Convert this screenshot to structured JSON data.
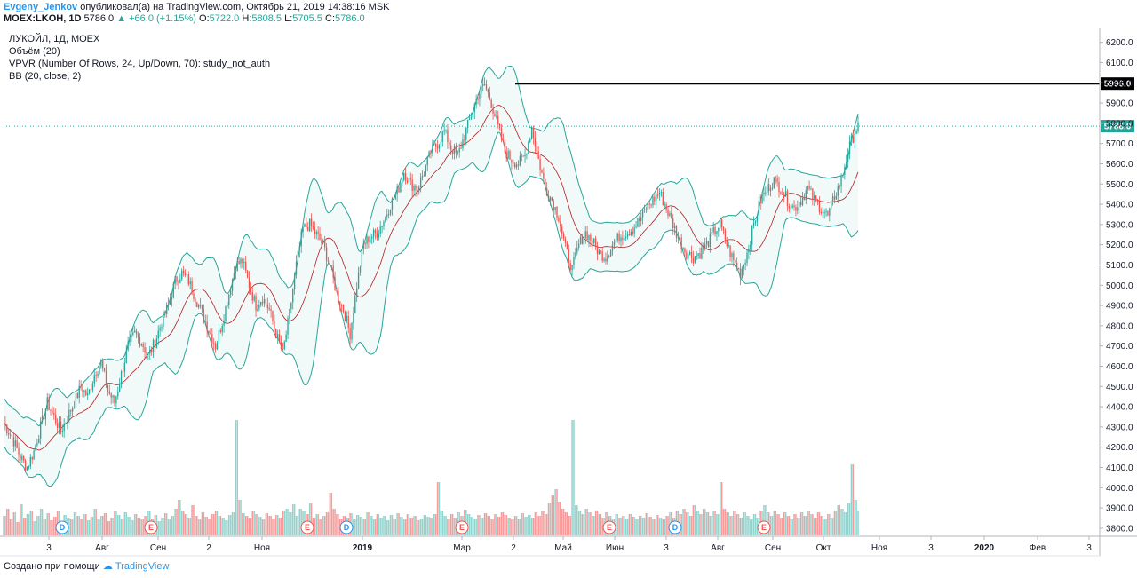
{
  "header": {
    "author": "Evgeny_Jenkov",
    "published": "опубликовал(а) на TradingView.com, Октябрь 21, 2019 14:38:16 MSK",
    "symbol": "MOEX:LKOH, 1D",
    "last": "5786.0",
    "change": "▲ +66.0 (+1.15%)",
    "open_label": "O:",
    "open": "5722.0",
    "high_label": "H:",
    "high": "5808.5",
    "low_label": "L:",
    "low": "5705.5",
    "close_label": "C:",
    "close": "5786.0"
  },
  "legend": {
    "title": "ЛУКОЙЛ, 1Д, MOEX",
    "volume": "Объём (20)",
    "vpvr": "VPVR (Number Of Rows, 24, Up/Down, 70): study_not_auth",
    "bb": "BB (20, close, 2)"
  },
  "footer": {
    "created": "Создано при помощи",
    "brand": "TradingView"
  },
  "chart_data": {
    "type": "candlestick",
    "y_ticks": [
      "6200.0",
      "6100.0",
      "6000.0",
      "5900.0",
      "5800.0",
      "5700.0",
      "5600.0",
      "5500.0",
      "5400.0",
      "5300.0",
      "5200.0",
      "5100.0",
      "5000.0",
      "4900.0",
      "4800.0",
      "4700.0",
      "4600.0",
      "4500.0",
      "4400.0",
      "4300.0",
      "4200.0",
      "4100.0",
      "4000.0",
      "3900.0",
      "3800.0"
    ],
    "x_labels": [
      "3",
      "Авг",
      "Сен",
      "2",
      "Ноя",
      "2019",
      "Мар",
      "2",
      "Май",
      "Июн",
      "3",
      "Авг",
      "Сен",
      "Окт",
      "Ноя",
      "3",
      "2020",
      "Фев",
      "3"
    ],
    "x_bold": [
      "2019",
      "2020"
    ],
    "ylim": [
      3760,
      6260
    ],
    "resistance_level": 5996.0,
    "resistance_label": "5996.0",
    "last_price": 5786.0,
    "last_price_label": "5786.0",
    "close_path": [
      [
        0,
        4320
      ],
      [
        5,
        4250
      ],
      [
        10,
        4150
      ],
      [
        14,
        4100
      ],
      [
        18,
        4180
      ],
      [
        22,
        4300
      ],
      [
        26,
        4420
      ],
      [
        30,
        4350
      ],
      [
        34,
        4280
      ],
      [
        38,
        4350
      ],
      [
        42,
        4420
      ],
      [
        46,
        4500
      ],
      [
        50,
        4450
      ],
      [
        54,
        4560
      ],
      [
        58,
        4620
      ],
      [
        62,
        4480
      ],
      [
        66,
        4420
      ],
      [
        70,
        4560
      ],
      [
        74,
        4700
      ],
      [
        78,
        4760
      ],
      [
        82,
        4720
      ],
      [
        86,
        4650
      ],
      [
        90,
        4720
      ],
      [
        94,
        4820
      ],
      [
        98,
        4900
      ],
      [
        102,
        5020
      ],
      [
        106,
        5060
      ],
      [
        110,
        5020
      ],
      [
        114,
        4940
      ],
      [
        118,
        4860
      ],
      [
        122,
        4780
      ],
      [
        126,
        4700
      ],
      [
        130,
        4820
      ],
      [
        134,
        4960
      ],
      [
        138,
        5100
      ],
      [
        142,
        5120
      ],
      [
        146,
        5000
      ],
      [
        150,
        4900
      ],
      [
        154,
        4940
      ],
      [
        158,
        4880
      ],
      [
        162,
        4760
      ],
      [
        166,
        4660
      ],
      [
        170,
        4860
      ],
      [
        174,
        5100
      ],
      [
        178,
        5280
      ],
      [
        182,
        5300
      ],
      [
        186,
        5250
      ],
      [
        190,
        5200
      ],
      [
        194,
        5100
      ],
      [
        198,
        4960
      ],
      [
        202,
        4880
      ],
      [
        206,
        4760
      ],
      [
        210,
        5000
      ],
      [
        214,
        5200
      ],
      [
        218,
        5240
      ],
      [
        222,
        5260
      ],
      [
        226,
        5320
      ],
      [
        230,
        5400
      ],
      [
        234,
        5460
      ],
      [
        238,
        5560
      ],
      [
        242,
        5500
      ],
      [
        246,
        5480
      ],
      [
        250,
        5560
      ],
      [
        254,
        5660
      ],
      [
        258,
        5700
      ],
      [
        262,
        5760
      ],
      [
        266,
        5680
      ],
      [
        270,
        5640
      ],
      [
        274,
        5740
      ],
      [
        278,
        5840
      ],
      [
        282,
        5940
      ],
      [
        286,
        5990
      ],
      [
        290,
        5900
      ],
      [
        294,
        5780
      ],
      [
        298,
        5660
      ],
      [
        302,
        5620
      ],
      [
        306,
        5600
      ],
      [
        310,
        5640
      ],
      [
        314,
        5780
      ],
      [
        318,
        5620
      ],
      [
        322,
        5480
      ],
      [
        326,
        5420
      ],
      [
        330,
        5340
      ],
      [
        334,
        5180
      ],
      [
        338,
        5080
      ],
      [
        342,
        5200
      ],
      [
        346,
        5260
      ],
      [
        350,
        5220
      ],
      [
        354,
        5160
      ],
      [
        358,
        5140
      ],
      [
        362,
        5200
      ],
      [
        366,
        5240
      ],
      [
        370,
        5260
      ],
      [
        374,
        5280
      ],
      [
        378,
        5320
      ],
      [
        382,
        5380
      ],
      [
        386,
        5420
      ],
      [
        390,
        5460
      ],
      [
        394,
        5380
      ],
      [
        398,
        5300
      ],
      [
        402,
        5220
      ],
      [
        406,
        5160
      ],
      [
        410,
        5140
      ],
      [
        414,
        5160
      ],
      [
        418,
        5200
      ],
      [
        422,
        5260
      ],
      [
        426,
        5300
      ],
      [
        430,
        5200
      ],
      [
        434,
        5120
      ],
      [
        438,
        5060
      ],
      [
        442,
        5160
      ],
      [
        446,
        5300
      ],
      [
        450,
        5420
      ],
      [
        454,
        5480
      ],
      [
        458,
        5520
      ],
      [
        462,
        5480
      ],
      [
        466,
        5420
      ],
      [
        470,
        5380
      ],
      [
        474,
        5420
      ],
      [
        478,
        5480
      ],
      [
        482,
        5420
      ],
      [
        486,
        5380
      ],
      [
        490,
        5340
      ],
      [
        494,
        5440
      ],
      [
        498,
        5520
      ],
      [
        502,
        5660
      ],
      [
        506,
        5760
      ],
      [
        508,
        5786
      ]
    ],
    "volume_profile": [
      [
        0,
        22
      ],
      [
        2,
        30
      ],
      [
        4,
        18
      ],
      [
        6,
        26
      ],
      [
        8,
        15
      ],
      [
        10,
        35
      ],
      [
        12,
        20
      ],
      [
        14,
        24
      ],
      [
        16,
        28
      ],
      [
        18,
        16
      ],
      [
        20,
        22
      ],
      [
        22,
        30
      ],
      [
        24,
        19
      ],
      [
        26,
        25
      ],
      [
        28,
        17
      ],
      [
        30,
        21
      ],
      [
        32,
        27
      ],
      [
        34,
        15
      ],
      [
        36,
        23
      ],
      [
        38,
        20
      ],
      [
        40,
        18
      ],
      [
        42,
        26
      ],
      [
        44,
        22
      ],
      [
        46,
        19
      ],
      [
        48,
        24
      ],
      [
        50,
        17
      ],
      [
        52,
        21
      ],
      [
        54,
        30
      ],
      [
        56,
        18
      ],
      [
        58,
        22
      ],
      [
        60,
        25
      ],
      [
        62,
        16
      ],
      [
        64,
        20
      ],
      [
        66,
        28
      ],
      [
        68,
        23
      ],
      [
        70,
        19
      ],
      [
        72,
        26
      ],
      [
        74,
        21
      ],
      [
        76,
        17
      ],
      [
        78,
        24
      ],
      [
        80,
        20
      ],
      [
        82,
        18
      ],
      [
        84,
        22
      ],
      [
        86,
        27
      ],
      [
        88,
        19
      ],
      [
        90,
        23
      ],
      [
        92,
        16
      ],
      [
        94,
        20
      ],
      [
        96,
        25
      ],
      [
        98,
        18
      ],
      [
        100,
        22
      ],
      [
        102,
        30
      ],
      [
        104,
        40
      ],
      [
        106,
        28
      ],
      [
        108,
        24
      ],
      [
        110,
        20
      ],
      [
        112,
        34
      ],
      [
        114,
        22
      ],
      [
        116,
        18
      ],
      [
        118,
        26
      ],
      [
        120,
        21
      ],
      [
        122,
        19
      ],
      [
        124,
        24
      ],
      [
        126,
        28
      ],
      [
        128,
        22
      ],
      [
        130,
        20
      ],
      [
        132,
        17
      ],
      [
        134,
        23
      ],
      [
        136,
        26
      ],
      [
        138,
        130
      ],
      [
        140,
        40
      ],
      [
        142,
        25
      ],
      [
        144,
        22
      ],
      [
        146,
        20
      ],
      [
        148,
        27
      ],
      [
        150,
        24
      ],
      [
        152,
        21
      ],
      [
        154,
        18
      ],
      [
        156,
        25
      ],
      [
        158,
        22
      ],
      [
        160,
        19
      ],
      [
        162,
        23
      ],
      [
        164,
        20
      ],
      [
        166,
        28
      ],
      [
        168,
        30
      ],
      [
        170,
        26
      ],
      [
        172,
        35
      ],
      [
        174,
        22
      ],
      [
        176,
        30
      ],
      [
        178,
        28
      ],
      [
        180,
        24
      ],
      [
        182,
        36
      ],
      [
        184,
        20
      ],
      [
        186,
        24
      ],
      [
        188,
        18
      ],
      [
        190,
        22
      ],
      [
        192,
        26
      ],
      [
        194,
        48
      ],
      [
        196,
        30
      ],
      [
        198,
        24
      ],
      [
        200,
        19
      ],
      [
        202,
        22
      ],
      [
        204,
        20
      ],
      [
        206,
        25
      ],
      [
        208,
        18
      ],
      [
        210,
        23
      ],
      [
        212,
        21
      ],
      [
        214,
        19
      ],
      [
        216,
        26
      ],
      [
        218,
        22
      ],
      [
        220,
        18
      ],
      [
        222,
        24
      ],
      [
        224,
        20
      ],
      [
        226,
        22
      ],
      [
        228,
        17
      ],
      [
        230,
        23
      ],
      [
        232,
        19
      ],
      [
        234,
        25
      ],
      [
        236,
        21
      ],
      [
        238,
        18
      ],
      [
        240,
        24
      ],
      [
        242,
        20
      ],
      [
        244,
        22
      ],
      [
        246,
        17
      ],
      [
        248,
        19
      ],
      [
        250,
        23
      ],
      [
        252,
        21
      ],
      [
        254,
        20
      ],
      [
        256,
        24
      ],
      [
        258,
        60
      ],
      [
        260,
        28
      ],
      [
        262,
        22
      ],
      [
        264,
        19
      ],
      [
        266,
        24
      ],
      [
        268,
        20
      ],
      [
        270,
        26
      ],
      [
        272,
        22
      ],
      [
        274,
        29
      ],
      [
        276,
        24
      ],
      [
        278,
        21
      ],
      [
        280,
        19
      ],
      [
        282,
        23
      ],
      [
        284,
        20
      ],
      [
        286,
        25
      ],
      [
        288,
        22
      ],
      [
        290,
        18
      ],
      [
        292,
        24
      ],
      [
        294,
        21
      ],
      [
        296,
        26
      ],
      [
        298,
        23
      ],
      [
        300,
        20
      ],
      [
        302,
        18
      ],
      [
        304,
        22
      ],
      [
        306,
        19
      ],
      [
        308,
        25
      ],
      [
        310,
        21
      ],
      [
        312,
        23
      ],
      [
        314,
        20
      ],
      [
        316,
        26
      ],
      [
        318,
        22
      ],
      [
        320,
        28
      ],
      [
        322,
        24
      ],
      [
        324,
        36
      ],
      [
        326,
        45
      ],
      [
        328,
        52
      ],
      [
        330,
        38
      ],
      [
        332,
        30
      ],
      [
        334,
        26
      ],
      [
        336,
        22
      ],
      [
        338,
        130
      ],
      [
        340,
        34
      ],
      [
        342,
        28
      ],
      [
        344,
        24
      ],
      [
        346,
        30
      ],
      [
        348,
        26
      ],
      [
        350,
        22
      ],
      [
        352,
        28
      ],
      [
        354,
        24
      ],
      [
        356,
        20
      ],
      [
        358,
        26
      ],
      [
        360,
        22
      ],
      [
        362,
        18
      ],
      [
        364,
        24
      ],
      [
        366,
        20
      ],
      [
        368,
        22
      ],
      [
        370,
        19
      ],
      [
        372,
        24
      ],
      [
        374,
        21
      ],
      [
        376,
        18
      ],
      [
        378,
        22
      ],
      [
        380,
        20
      ],
      [
        382,
        25
      ],
      [
        384,
        21
      ],
      [
        386,
        19
      ],
      [
        388,
        23
      ],
      [
        390,
        20
      ],
      [
        392,
        18
      ],
      [
        394,
        22
      ],
      [
        396,
        26
      ],
      [
        398,
        20
      ],
      [
        400,
        28
      ],
      [
        402,
        24
      ],
      [
        404,
        30
      ],
      [
        406,
        26
      ],
      [
        408,
        22
      ],
      [
        410,
        34
      ],
      [
        412,
        28
      ],
      [
        414,
        24
      ],
      [
        416,
        30
      ],
      [
        418,
        26
      ],
      [
        420,
        22
      ],
      [
        422,
        28
      ],
      [
        424,
        24
      ],
      [
        426,
        60
      ],
      [
        428,
        30
      ],
      [
        430,
        26
      ],
      [
        432,
        22
      ],
      [
        434,
        28
      ],
      [
        436,
        24
      ],
      [
        438,
        20
      ],
      [
        440,
        26
      ],
      [
        442,
        22
      ],
      [
        444,
        18
      ],
      [
        446,
        24
      ],
      [
        448,
        20
      ],
      [
        450,
        28
      ],
      [
        452,
        34
      ],
      [
        454,
        26
      ],
      [
        456,
        22
      ],
      [
        458,
        28
      ],
      [
        460,
        24
      ],
      [
        462,
        20
      ],
      [
        464,
        26
      ],
      [
        466,
        22
      ],
      [
        468,
        18
      ],
      [
        470,
        24
      ],
      [
        472,
        20
      ],
      [
        474,
        26
      ],
      [
        476,
        22
      ],
      [
        478,
        28
      ],
      [
        480,
        24
      ],
      [
        482,
        20
      ],
      [
        484,
        26
      ],
      [
        486,
        22
      ],
      [
        488,
        18
      ],
      [
        490,
        24
      ],
      [
        492,
        20
      ],
      [
        494,
        28
      ],
      [
        496,
        34
      ],
      [
        498,
        30
      ],
      [
        500,
        26
      ],
      [
        502,
        36
      ],
      [
        504,
        80
      ],
      [
        506,
        40
      ],
      [
        508,
        28
      ]
    ],
    "events": [
      {
        "type": "D",
        "x": 70
      },
      {
        "type": "E",
        "x": 170
      },
      {
        "type": "E",
        "x": 346
      },
      {
        "type": "D",
        "x": 390
      },
      {
        "type": "E",
        "x": 520
      },
      {
        "type": "E",
        "x": 686
      },
      {
        "type": "D",
        "x": 760
      },
      {
        "type": "E",
        "x": 860
      }
    ]
  }
}
